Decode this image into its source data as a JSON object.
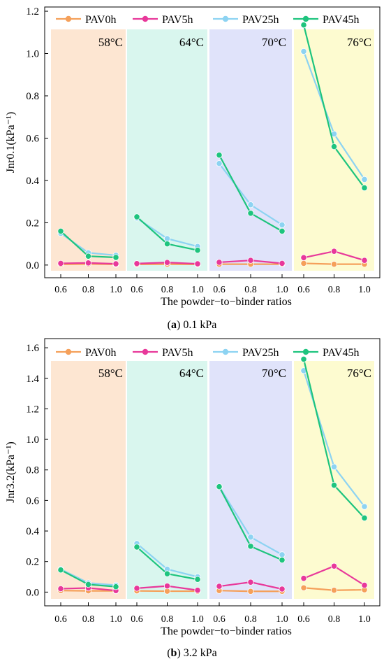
{
  "figure": {
    "caption_a_letter": "a",
    "caption_a_text": "0.1 kPa",
    "caption_b_letter": "b",
    "caption_b_text": "3.2 kPa"
  },
  "colors": {
    "series": [
      "#f5a05a",
      "#e8389a",
      "#8dd3f2",
      "#1ec47e"
    ],
    "panels": [
      "#fde6d2",
      "#d9f6ee",
      "#e0e3fa",
      "#fdfbd0"
    ]
  },
  "chart_data": [
    {
      "type": "line",
      "xlabel": "The powder−to−binder ratios",
      "ylabel": "Jnr0.1(kPa⁻¹)",
      "ylim": [
        -0.06,
        1.22
      ],
      "yticks": [
        0.0,
        0.2,
        0.4,
        0.6,
        0.8,
        1.0,
        1.2
      ],
      "ytick_labels": [
        "0.0",
        "0.2",
        "0.4",
        "0.6",
        "0.8",
        "1.0",
        "1.2"
      ],
      "x_tick_labels": [
        "0.6",
        "0.8",
        "1.0"
      ],
      "legend_position": "top",
      "grid": false,
      "groups": [
        "58°C",
        "64°C",
        "70°C",
        "76°C"
      ],
      "series": [
        {
          "name": "PAV0h",
          "values": [
            [
              0.003,
              0.005,
              0.003
            ],
            [
              0.003,
              0.004,
              0.003
            ],
            [
              0.004,
              0.004,
              0.004
            ],
            [
              0.008,
              0.004,
              0.004
            ]
          ]
        },
        {
          "name": "PAV5h",
          "values": [
            [
              0.008,
              0.01,
              0.006
            ],
            [
              0.007,
              0.012,
              0.006
            ],
            [
              0.013,
              0.022,
              0.008
            ],
            [
              0.035,
              0.065,
              0.022
            ]
          ]
        },
        {
          "name": "PAV25h",
          "values": [
            [
              0.15,
              0.058,
              0.046
            ],
            [
              0.222,
              0.125,
              0.088
            ],
            [
              0.48,
              0.285,
              0.19
            ],
            [
              1.01,
              0.62,
              0.405
            ]
          ]
        },
        {
          "name": "PAV45h",
          "values": [
            [
              0.16,
              0.042,
              0.036
            ],
            [
              0.228,
              0.1,
              0.07
            ],
            [
              0.52,
              0.245,
              0.16
            ],
            [
              1.135,
              0.56,
              0.365
            ]
          ]
        }
      ]
    },
    {
      "type": "line",
      "xlabel": "The powder−to−binder ratios",
      "ylabel": "Jnr3.2(kPa⁻¹)",
      "ylim": [
        -0.09,
        1.66
      ],
      "yticks": [
        0.0,
        0.2,
        0.4,
        0.6,
        0.8,
        1.0,
        1.2,
        1.4,
        1.6
      ],
      "ytick_labels": [
        "0.0",
        "0.2",
        "0.4",
        "0.6",
        "0.8",
        "1.0",
        "1.2",
        "1.4",
        "1.6"
      ],
      "x_tick_labels": [
        "0.6",
        "0.8",
        "1.0"
      ],
      "legend_position": "top",
      "grid": false,
      "groups": [
        "58°C",
        "64°C",
        "70°C",
        "76°C"
      ],
      "series": [
        {
          "name": "PAV0h",
          "values": [
            [
              0.01,
              0.008,
              0.008
            ],
            [
              0.008,
              0.006,
              0.006
            ],
            [
              0.01,
              0.005,
              0.005
            ],
            [
              0.028,
              0.012,
              0.015
            ]
          ]
        },
        {
          "name": "PAV5h",
          "values": [
            [
              0.022,
              0.027,
              0.01
            ],
            [
              0.025,
              0.04,
              0.012
            ],
            [
              0.038,
              0.065,
              0.02
            ],
            [
              0.09,
              0.17,
              0.045
            ]
          ]
        },
        {
          "name": "PAV25h",
          "values": [
            [
              0.15,
              0.06,
              0.045
            ],
            [
              0.318,
              0.15,
              0.1
            ],
            [
              0.69,
              0.36,
              0.245
            ],
            [
              1.45,
              0.82,
              0.56
            ]
          ]
        },
        {
          "name": "PAV45h",
          "values": [
            [
              0.145,
              0.05,
              0.035
            ],
            [
              0.295,
              0.12,
              0.083
            ],
            [
              0.69,
              0.3,
              0.21
            ],
            [
              1.525,
              0.7,
              0.485
            ]
          ]
        }
      ]
    }
  ]
}
